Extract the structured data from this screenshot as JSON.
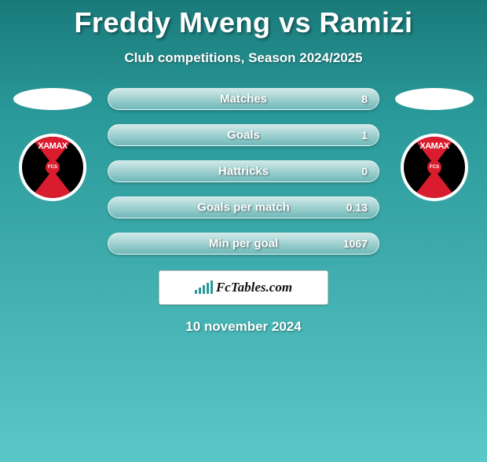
{
  "header": {
    "title": "Freddy Mveng vs Ramizi",
    "subtitle": "Club competitions, Season 2024/2025"
  },
  "left_team": {
    "badge_text": "XAMAX",
    "badge_sub": "FCS",
    "badge_primary": "#d91c2e",
    "badge_secondary": "#000000"
  },
  "right_team": {
    "badge_text": "XAMAX",
    "badge_sub": "FCS",
    "badge_primary": "#d91c2e",
    "badge_secondary": "#000000"
  },
  "stats": [
    {
      "label": "Matches",
      "value": "8"
    },
    {
      "label": "Goals",
      "value": "1"
    },
    {
      "label": "Hattricks",
      "value": "0"
    },
    {
      "label": "Goals per match",
      "value": "0.13"
    },
    {
      "label": "Min per goal",
      "value": "1067"
    }
  ],
  "attribution": {
    "site": "FcTables.com"
  },
  "date": "10 november 2024",
  "style": {
    "bg_gradient_top": "#1a7a7a",
    "bg_gradient_bottom": "#5ac8c8",
    "pill_text_color": "#ffffff",
    "title_fontsize": 36,
    "subtitle_fontsize": 17,
    "stat_label_fontsize": 15,
    "stat_value_fontsize": 14
  }
}
